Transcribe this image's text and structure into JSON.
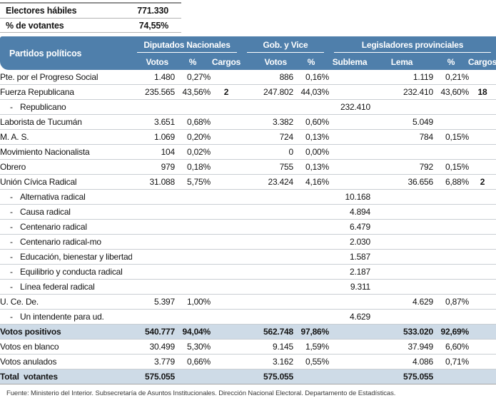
{
  "summary": {
    "rows": [
      {
        "label": "Electores hábiles",
        "value": "771.330"
      },
      {
        "label": "% de votantes",
        "value": "74,55%"
      }
    ]
  },
  "table": {
    "header": {
      "party_col": "Partidos políticos",
      "groups": [
        {
          "label": "Diputados Nacionales",
          "cols": [
            "Votos",
            "%",
            "Cargos"
          ]
        },
        {
          "label": "Gob. y Vice",
          "cols": [
            "Votos",
            "%"
          ]
        },
        {
          "label": "Legisladores provinciales",
          "cols": [
            "Sublema",
            "Lema",
            "%",
            "Cargos"
          ]
        }
      ]
    },
    "rows": [
      {
        "name": "Pte. por el Progreso Social",
        "values": [
          "1.480",
          "0,27%",
          "",
          "886",
          "0,16%",
          "",
          "1.119",
          "0,21%",
          ""
        ]
      },
      {
        "name": "Fuerza Republicana",
        "values": [
          "235.565",
          "43,56%",
          "2",
          "247.802",
          "44,03%",
          "",
          "232.410",
          "43,60%",
          "18"
        ]
      },
      {
        "name": "Republicano",
        "prefix": "-",
        "indent": true,
        "values": [
          "",
          "",
          "",
          "",
          "",
          "232.410",
          "",
          "",
          ""
        ]
      },
      {
        "name": "Laborista de Tucumán",
        "values": [
          "3.651",
          "0,68%",
          "",
          "3.382",
          "0,60%",
          "",
          "5.049",
          "",
          ""
        ]
      },
      {
        "name": "M. A. S.",
        "values": [
          "1.069",
          "0,20%",
          "",
          "724",
          "0,13%",
          "",
          "784",
          "0,15%",
          ""
        ]
      },
      {
        "name": "Movimiento Nacionalista",
        "values": [
          "104",
          "0,02%",
          "",
          "0",
          "0,00%",
          "",
          "",
          "",
          ""
        ]
      },
      {
        "name": "Obrero",
        "values": [
          "979",
          "0,18%",
          "",
          "755",
          "0,13%",
          "",
          "792",
          "0,15%",
          ""
        ]
      },
      {
        "name": "Unión Cívica Radical",
        "values": [
          "31.088",
          "5,75%",
          "",
          "23.424",
          "4,16%",
          "",
          "36.656",
          "6,88%",
          "2"
        ]
      },
      {
        "name": "Alternativa radical",
        "prefix": "-",
        "indent": true,
        "values": [
          "",
          "",
          "",
          "",
          "",
          "10.168",
          "",
          "",
          ""
        ]
      },
      {
        "name": "Causa radical",
        "prefix": "-",
        "indent": true,
        "values": [
          "",
          "",
          "",
          "",
          "",
          "4.894",
          "",
          "",
          ""
        ]
      },
      {
        "name": "Centenario radical",
        "prefix": "-",
        "indent": true,
        "values": [
          "",
          "",
          "",
          "",
          "",
          "6.479",
          "",
          "",
          ""
        ]
      },
      {
        "name": "Centenario radical-mo",
        "prefix": "-",
        "indent": true,
        "values": [
          "",
          "",
          "",
          "",
          "",
          "2.030",
          "",
          "",
          ""
        ]
      },
      {
        "name": "Educación, bienestar y libertad",
        "prefix": "-",
        "indent": true,
        "values": [
          "",
          "",
          "",
          "",
          "",
          "1.587",
          "",
          "",
          ""
        ]
      },
      {
        "name": "Equilibrio y conducta radical",
        "prefix": "-",
        "indent": true,
        "values": [
          "",
          "",
          "",
          "",
          "",
          "2.187",
          "",
          "",
          ""
        ]
      },
      {
        "name": "Línea federal radical",
        "prefix": "-",
        "indent": true,
        "values": [
          "",
          "",
          "",
          "",
          "",
          "9.311",
          "",
          "",
          ""
        ]
      },
      {
        "name": "U. Ce. De.",
        "values": [
          "5.397",
          "1,00%",
          "",
          "",
          "",
          "",
          "4.629",
          "0,87%",
          ""
        ]
      },
      {
        "name": "Un intendente para ud.",
        "prefix": "-",
        "indent": true,
        "values": [
          "",
          "",
          "",
          "",
          "",
          "4.629",
          "",
          "",
          ""
        ]
      },
      {
        "name": "Votos positivos",
        "bold": true,
        "highlight": true,
        "values": [
          "540.777",
          "94,04%",
          "",
          "562.748",
          "97,86%",
          "",
          "533.020",
          "92,69%",
          ""
        ]
      },
      {
        "name": "Votos en blanco",
        "values": [
          "30.499",
          "5,30%",
          "",
          "9.145",
          "1,59%",
          "",
          "37.949",
          "6,60%",
          ""
        ]
      },
      {
        "name": "Votos anulados",
        "values": [
          "3.779",
          "0,66%",
          "",
          "3.162",
          "0,55%",
          "",
          "4.086",
          "0,71%",
          ""
        ]
      },
      {
        "name": "Total  votantes",
        "bold": true,
        "highlight": true,
        "values": [
          "575.055",
          "",
          "",
          "575.055",
          "",
          "",
          "575.055",
          "",
          ""
        ]
      }
    ]
  },
  "footer": {
    "source": "Fuente: Ministerio del Interior. Subsecretaría de Asuntos Institucionales. Dirección Nacional Electoral. Departamento de Estadísticas."
  },
  "colors": {
    "header_bg": "#4f7fab",
    "highlight_bg": "#cedbe7",
    "row_line": "#c9ced3",
    "text": "#141414"
  }
}
